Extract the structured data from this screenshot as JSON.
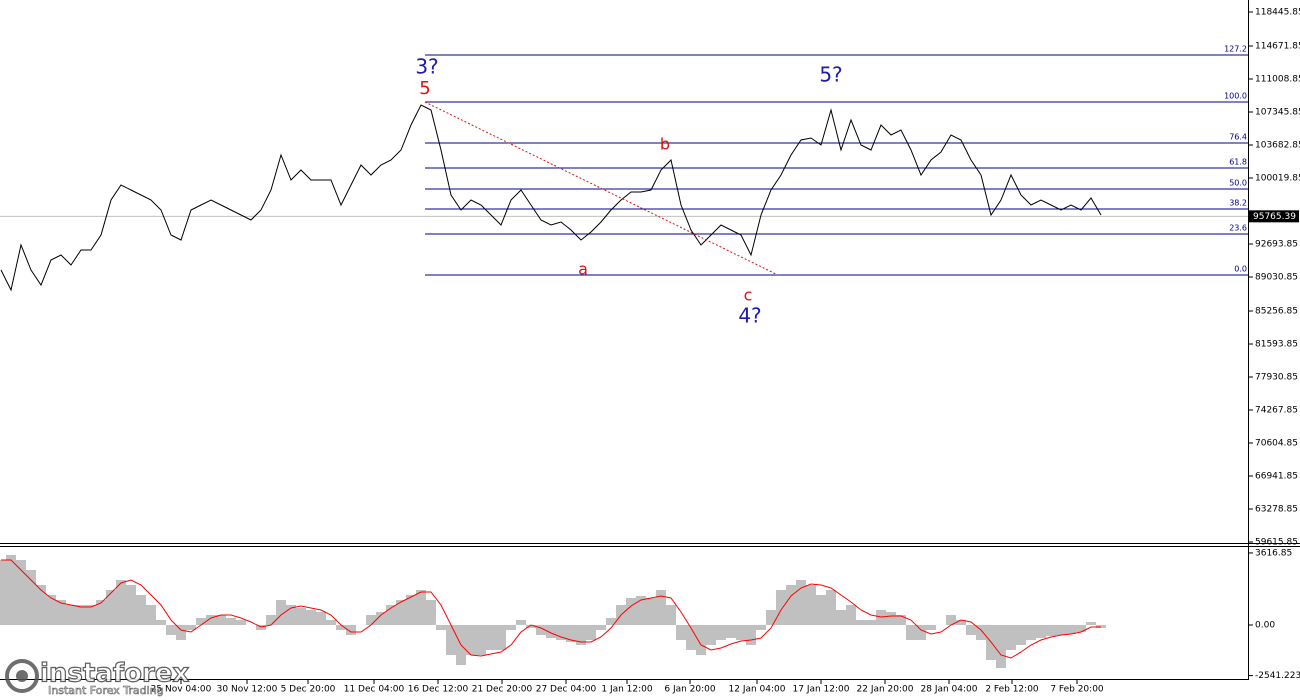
{
  "chart_data": [
    {
      "type": "line",
      "color": "#000000",
      "values": [
        89808,
        87588,
        92583,
        89808,
        88143,
        90918,
        91473,
        90363,
        92028,
        92028,
        93693,
        97578,
        99243,
        98688,
        98133,
        97578,
        96468,
        93693,
        93138,
        96468,
        97023,
        97578,
        97023,
        96468,
        95913,
        95358,
        96468,
        98688,
        102573,
        99798,
        100908,
        99798,
        99798,
        99798,
        97023,
        99243,
        101463,
        100353,
        101463,
        102018,
        103128,
        105903,
        108123,
        107568,
        103128,
        98133,
        96468,
        97578,
        97023,
        95913,
        94803,
        97578,
        98688,
        97023,
        95358,
        94803,
        95136,
        94248,
        93138,
        94026,
        95136,
        96468,
        97578,
        98466,
        98466,
        98688,
        100908,
        102018,
        97023,
        94248,
        92583,
        93693,
        94803,
        94248,
        93693,
        91473,
        95913,
        98688,
        100353,
        102573,
        104238,
        104460,
        103683,
        107568,
        103128,
        106458,
        103683,
        103128,
        105903,
        104793,
        105348,
        103128,
        100353,
        102018,
        102906,
        104793,
        104238,
        102018,
        100353,
        95913,
        97578,
        100353,
        98133,
        97023,
        97578,
        97023,
        96468,
        97023,
        96468,
        97800,
        95913
      ],
      "ylim": [
        59505,
        119778
      ],
      "yticks": [
        118445.85,
        114671.85,
        111008.85,
        107345.85,
        103682.85,
        100019.85,
        92693.85,
        89030.85,
        85256.85,
        81593.85,
        77930.85,
        74267.85,
        70604.85,
        66941.85,
        63278.85,
        59615.85
      ],
      "current_price": 95765.39,
      "fib_color": "#00008b",
      "fib_levels": [
        {
          "label": "127.2",
          "value": 113673
        },
        {
          "label": "100.0",
          "value": 108456
        },
        {
          "label": "76.4",
          "value": 103905
        },
        {
          "label": "61.8",
          "value": 101130
        },
        {
          "label": "50.0",
          "value": 98799
        },
        {
          "label": "38.2",
          "value": 96579
        },
        {
          "label": "23.6",
          "value": 93804
        },
        {
          "label": "0.0",
          "value": 89253
        }
      ],
      "annotations": [
        {
          "text": "3?",
          "color": "#1c1ca8"
        },
        {
          "text": "5",
          "color": "#e01010"
        },
        {
          "text": "5?",
          "color": "#1c1ca8"
        },
        {
          "text": "b",
          "color": "#e01010"
        },
        {
          "text": "a",
          "color": "#e01010"
        },
        {
          "text": "c",
          "color": "#e01010"
        },
        {
          "text": "4?",
          "color": "#1c1ca8"
        }
      ],
      "xticks": [
        {
          "value": 18,
          "label": "25 Nov 04:00"
        },
        {
          "value": 24.6,
          "label": "30 Nov 12:00"
        },
        {
          "value": 30.7,
          "label": "5 Dec 20:00"
        },
        {
          "value": 37.3,
          "label": "11 Dec 04:00"
        },
        {
          "value": 43.7,
          "label": "16 Dec 12:00"
        },
        {
          "value": 50.1,
          "label": "21 Dec 20:00"
        },
        {
          "value": 56.5,
          "label": "27 Dec 04:00"
        },
        {
          "value": 62.6,
          "label": "1 Jan 12:00"
        },
        {
          "value": 68.9,
          "label": "6 Jan 20:00"
        },
        {
          "value": 75.6,
          "label": "12 Jan 04:00"
        },
        {
          "value": 82,
          "label": "17 Jan 12:00"
        },
        {
          "value": 88.4,
          "label": "22 Jan 20:00"
        },
        {
          "value": 94.8,
          "label": "28 Jan 04:00"
        },
        {
          "value": 101.1,
          "label": "2 Feb 12:00"
        },
        {
          "value": 107.6,
          "label": "7 Feb 20:00"
        }
      ]
    },
    {
      "type": "macd",
      "ylim": [
        -3514,
        3865
      ],
      "yticks": [
        3616.85,
        {
          "value": 0,
          "label": "0.00"
        },
        -2541.223
      ],
      "histogram": {
        "color": "#c0c0c0",
        "values": [
          3263,
          3514,
          3263,
          2761,
          2008,
          1506,
          1255,
          1004,
          1004,
          1004,
          1255,
          1757,
          2259,
          2008,
          1506,
          1004,
          251,
          -502,
          -753,
          -251,
          351,
          502,
          502,
          351,
          251,
          0,
          -251,
          502,
          1255,
          1004,
          853,
          753,
          653,
          251,
          -251,
          -502,
          0,
          502,
          653,
          1004,
          1255,
          1506,
          1757,
          1255,
          -251,
          -1506,
          -2008,
          -1506,
          -1506,
          -1255,
          -1255,
          -251,
          251,
          -151,
          -502,
          -653,
          -753,
          -853,
          -1004,
          -753,
          -251,
          351,
          1004,
          1355,
          1456,
          1355,
          1757,
          1004,
          -753,
          -1255,
          -1506,
          -1004,
          -753,
          -653,
          -753,
          -1004,
          -251,
          753,
          1757,
          2008,
          2259,
          2008,
          1506,
          1757,
          753,
          1004,
          251,
          251,
          753,
          653,
          502,
          -753,
          -753,
          -251,
          0,
          502,
          251,
          -502,
          -753,
          -1757,
          -2159,
          -1255,
          -1004,
          -753,
          -653,
          -552,
          -502,
          -452,
          -351,
          151,
          -151
        ]
      },
      "signal": {
        "color": "#ff0000",
        "values": [
          3263,
          3263,
          2761,
          2259,
          1757,
          1355,
          1104,
          1004,
          904,
          904,
          1104,
          1606,
          2108,
          2259,
          2008,
          1506,
          1004,
          251,
          -251,
          -351,
          0,
          351,
          502,
          502,
          351,
          151,
          -100,
          0,
          502,
          853,
          954,
          853,
          753,
          502,
          0,
          -351,
          -351,
          0,
          502,
          853,
          1155,
          1406,
          1657,
          1657,
          1004,
          0,
          -1004,
          -1506,
          -1556,
          -1456,
          -1355,
          -1004,
          -351,
          0,
          -151,
          -402,
          -602,
          -753,
          -853,
          -853,
          -602,
          -151,
          502,
          954,
          1255,
          1355,
          1456,
          1355,
          653,
          -151,
          -1004,
          -1255,
          -1155,
          -954,
          -803,
          -753,
          -653,
          -151,
          753,
          1456,
          1857,
          2058,
          2008,
          1857,
          1506,
          1155,
          753,
          502,
          402,
          452,
          452,
          251,
          -251,
          -452,
          -351,
          0,
          251,
          151,
          -251,
          -853,
          -1506,
          -1657,
          -1355,
          -1004,
          -753,
          -602,
          -502,
          -452,
          -351,
          -100,
          -100
        ]
      }
    }
  ],
  "logo": {
    "brand": "instaforex",
    "tagline": "Instant Forex Trading"
  }
}
